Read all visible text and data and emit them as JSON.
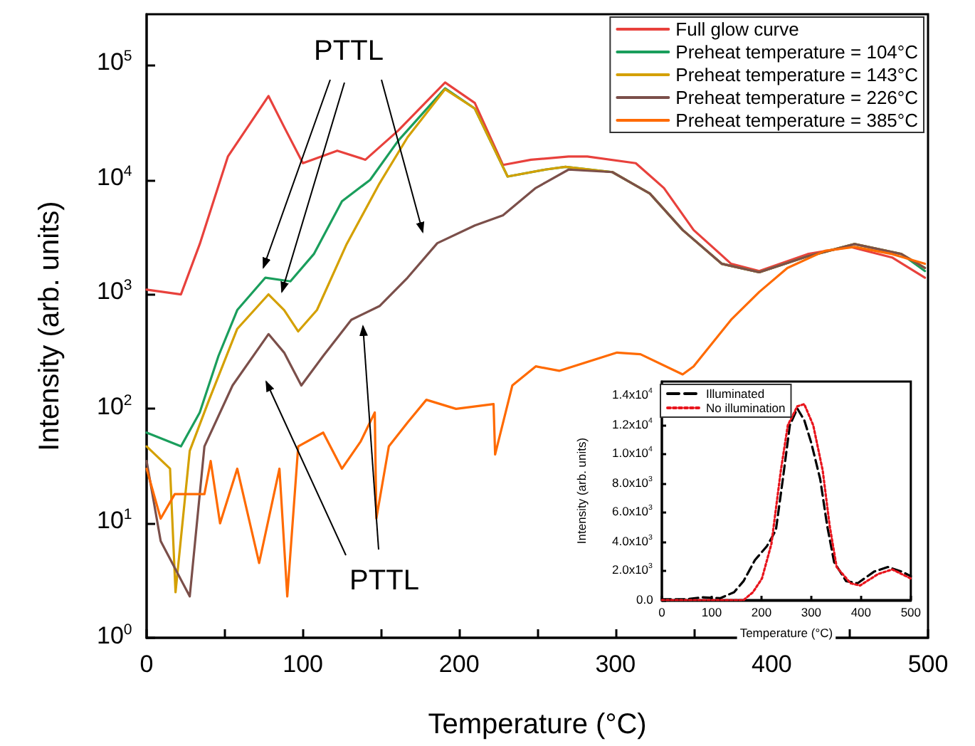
{
  "chart_data": [
    {
      "type": "line",
      "xlabel": "Temperature (°C)",
      "ylabel": "Intensity (arb. units)",
      "log": "y",
      "legend": "top right",
      "marker": "none",
      "grid": false,
      "xlim": [
        0,
        500
      ],
      "xticks": [
        0,
        {
          "value": 50,
          "label": null
        },
        100,
        {
          "value": 150,
          "label": null
        },
        200,
        {
          "value": 250,
          "label": null
        },
        300,
        {
          "value": 350,
          "label": null
        },
        400,
        {
          "value": 450,
          "label": null
        },
        500
      ],
      "ylim": [
        1,
        280000
      ],
      "yticks": [
        {
          "value": 1,
          "label": "10$^{0}$"
        },
        {
          "value": 10,
          "label": "10$^{1}$"
        },
        {
          "value": 100,
          "label": "10$^{2}$"
        },
        {
          "value": 1000,
          "label": "10$^{3}$"
        },
        {
          "value": 10000,
          "label": "10$^{4}$"
        },
        {
          "value": 100000,
          "label": "10$^{5}$"
        }
      ],
      "annotations": [
        "PTTL",
        "PTTL"
      ],
      "series": [
        {
          "name": "Full glow curve",
          "color": "#e8413c",
          "x": [
            0,
            22,
            34,
            52,
            78,
            88,
            100,
            122,
            140,
            161,
            191,
            210,
            228,
            246,
            270,
            282,
            313,
            331,
            350,
            374,
            392,
            423,
            450,
            477,
            498
          ],
          "values": [
            1100,
            1000,
            2750,
            16000,
            54000,
            29000,
            14000,
            18000,
            15000,
            27000,
            71000,
            47000,
            13500,
            15000,
            16000,
            16000,
            14000,
            8500,
            3650,
            1850,
            1600,
            2250,
            2600,
            2100,
            1400
          ]
        },
        {
          "name": "Preheat temperature = 104°C",
          "color": "#1a9e5c",
          "x": [
            0,
            22,
            34,
            46,
            58,
            76,
            92,
            107,
            125,
            143,
            161,
            191,
            210,
            231,
            255,
            268,
            298,
            322,
            343,
            368,
            392,
            423,
            453,
            483,
            498
          ],
          "values": [
            62,
            47,
            93,
            290,
            730,
            1400,
            1300,
            2250,
            6500,
            10000,
            22000,
            63000,
            42000,
            10700,
            12300,
            13000,
            11700,
            7600,
            3650,
            1850,
            1560,
            2150,
            2750,
            2250,
            1600
          ]
        },
        {
          "name": "Preheat temperature = 143°C",
          "color": "#d4a000",
          "x": [
            0,
            15,
            18.5,
            27.6,
            40,
            58,
            78,
            88,
            97,
            109,
            128,
            149,
            167,
            191,
            210,
            231,
            255,
            268,
            298,
            322,
            343,
            368,
            392,
            423,
            453,
            483,
            498
          ],
          "values": [
            47,
            30,
            2.5,
            43,
            120,
            500,
            1000,
            730,
            475,
            730,
            2750,
            9300,
            23600,
            62000,
            42000,
            10700,
            12300,
            13000,
            11700,
            7600,
            3650,
            1850,
            1560,
            2150,
            2750,
            2250,
            1700
          ]
        },
        {
          "name": "Preheat temperature = 226°C",
          "color": "#7b4f4a",
          "x": [
            0,
            9,
            27.6,
            37,
            55,
            78,
            88,
            99,
            113,
            131,
            149,
            167,
            186,
            210,
            228,
            249,
            270,
            298,
            322,
            343,
            368,
            392,
            423,
            453,
            483,
            498
          ],
          "values": [
            35,
            7,
            2.3,
            47,
            160,
            450,
            310,
            160,
            290,
            600,
            790,
            1400,
            2800,
            4000,
            4900,
            8500,
            12300,
            11700,
            7600,
            3650,
            1850,
            1560,
            2150,
            2750,
            2250,
            1700
          ]
        },
        {
          "name": "Preheat temperature = 385°C",
          "color": "#ff6a00",
          "x": [
            0,
            9,
            18,
            37,
            41,
            47,
            58,
            72,
            85,
            90,
            97,
            113,
            125,
            137,
            146,
            147,
            155,
            167,
            179,
            198,
            222,
            223,
            234,
            249,
            264,
            301,
            316,
            343,
            350,
            374,
            392,
            410,
            434,
            453,
            477,
            498
          ],
          "values": [
            30,
            11,
            18,
            18,
            35,
            10,
            30,
            4.5,
            30,
            2.3,
            47,
            62,
            30,
            52,
            93,
            11,
            47,
            76,
            120,
            100,
            110,
            40,
            160,
            235,
            215,
            310,
            300,
            200,
            235,
            600,
            1050,
            1700,
            2400,
            2600,
            2250,
            1850
          ]
        }
      ]
    },
    {
      "type": "line",
      "xlabel": "Temperature (°C)",
      "ylabel": "Intensity (arb. units)",
      "legend": "top left",
      "marker": "none",
      "grid": false,
      "xlim": [
        0,
        500
      ],
      "xticks": [
        0,
        100,
        200,
        300,
        400,
        500
      ],
      "ylim": [
        0,
        15000
      ],
      "yticks": [
        {
          "value": 0,
          "label": "0.0"
        },
        {
          "value": 2000,
          "label": "2.0x10$^{3}$"
        },
        {
          "value": 4000,
          "label": "4.0x10$^{3}$"
        },
        {
          "value": 6000,
          "label": "6.0x10$^{3}$"
        },
        {
          "value": 8000,
          "label": "8.0x10$^{3}$"
        },
        {
          "value": 10000,
          "label": "1.0x10$^{4}$"
        },
        {
          "value": 12000,
          "label": "1.2x10$^{4}$"
        },
        {
          "value": 14000,
          "label": "1.4x10$^{4}$"
        }
      ],
      "series": [
        {
          "name": "Illuminated",
          "color": "#000000",
          "line_style": "dashed",
          "x": [
            0,
            51,
            80,
            117,
            145,
            164,
            187,
            211,
            229,
            243,
            257,
            272,
            286,
            300,
            318,
            332,
            346,
            370,
            393,
            426,
            454,
            482,
            500
          ],
          "values": [
            60,
            60,
            190,
            125,
            540,
            1300,
            2750,
            3700,
            4800,
            8300,
            12000,
            13150,
            12350,
            10800,
            8300,
            5100,
            2600,
            1300,
            1150,
            1950,
            2270,
            1950,
            1640
          ]
        },
        {
          "name": "No illumination",
          "color": "#e8141c",
          "line_style": "dotted",
          "x": [
            0,
            100,
            164,
            183,
            201,
            220,
            239,
            253,
            272,
            286,
            304,
            323,
            337,
            351,
            379,
            398,
            435,
            463,
            500
          ],
          "values": [
            0,
            0,
            0,
            540,
            1480,
            3850,
            8900,
            12000,
            13300,
            13450,
            12000,
            8900,
            5100,
            2270,
            1150,
            1000,
            1800,
            2100,
            1480
          ]
        }
      ]
    }
  ]
}
